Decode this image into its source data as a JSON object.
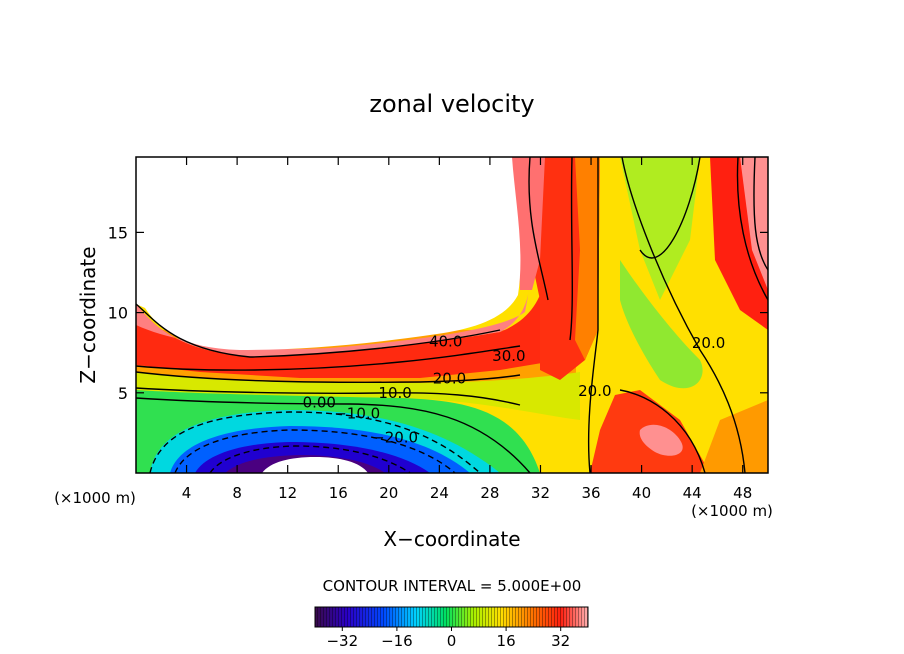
{
  "chart_data": {
    "type": "heatmap",
    "title": "zonal velocity",
    "xlabel": "X−coordinate",
    "ylabel": "Z−coordinate",
    "x_unit_left": "(×1000 m)",
    "x_unit_right": "(×1000 m)",
    "xlim": [
      0,
      50
    ],
    "ylim": [
      0,
      19.7
    ],
    "xticks": [
      4,
      8,
      12,
      16,
      20,
      24,
      28,
      32,
      36,
      40,
      44,
      48
    ],
    "yticks": [
      5,
      10,
      15
    ],
    "contour_interval_text": "CONTOUR INTERVAL = 5.000E+00",
    "colorbar": {
      "range": [
        -40,
        40
      ],
      "ticks": [
        -32,
        -16,
        0,
        16,
        32
      ],
      "tick_labels": [
        "−32",
        "−16",
        "0",
        "16",
        "32"
      ]
    },
    "contour_labels": [
      {
        "text": "40.0",
        "x": 24.5,
        "y": 8.2
      },
      {
        "text": "30.0",
        "x": 29.5,
        "y": 7.3
      },
      {
        "text": "20.0",
        "x": 24.8,
        "y": 5.9
      },
      {
        "text": "10.0",
        "x": 20.5,
        "y": 5.0
      },
      {
        "text": "0.00",
        "x": 14.5,
        "y": 4.4
      },
      {
        "text": "−10.0",
        "x": 17.5,
        "y": 3.7
      },
      {
        "text": "−20.0",
        "x": 20.5,
        "y": 2.2
      },
      {
        "text": "20.0",
        "x": 36.3,
        "y": 5.1
      },
      {
        "text": "20.0",
        "x": 45.3,
        "y": 8.1
      }
    ]
  }
}
